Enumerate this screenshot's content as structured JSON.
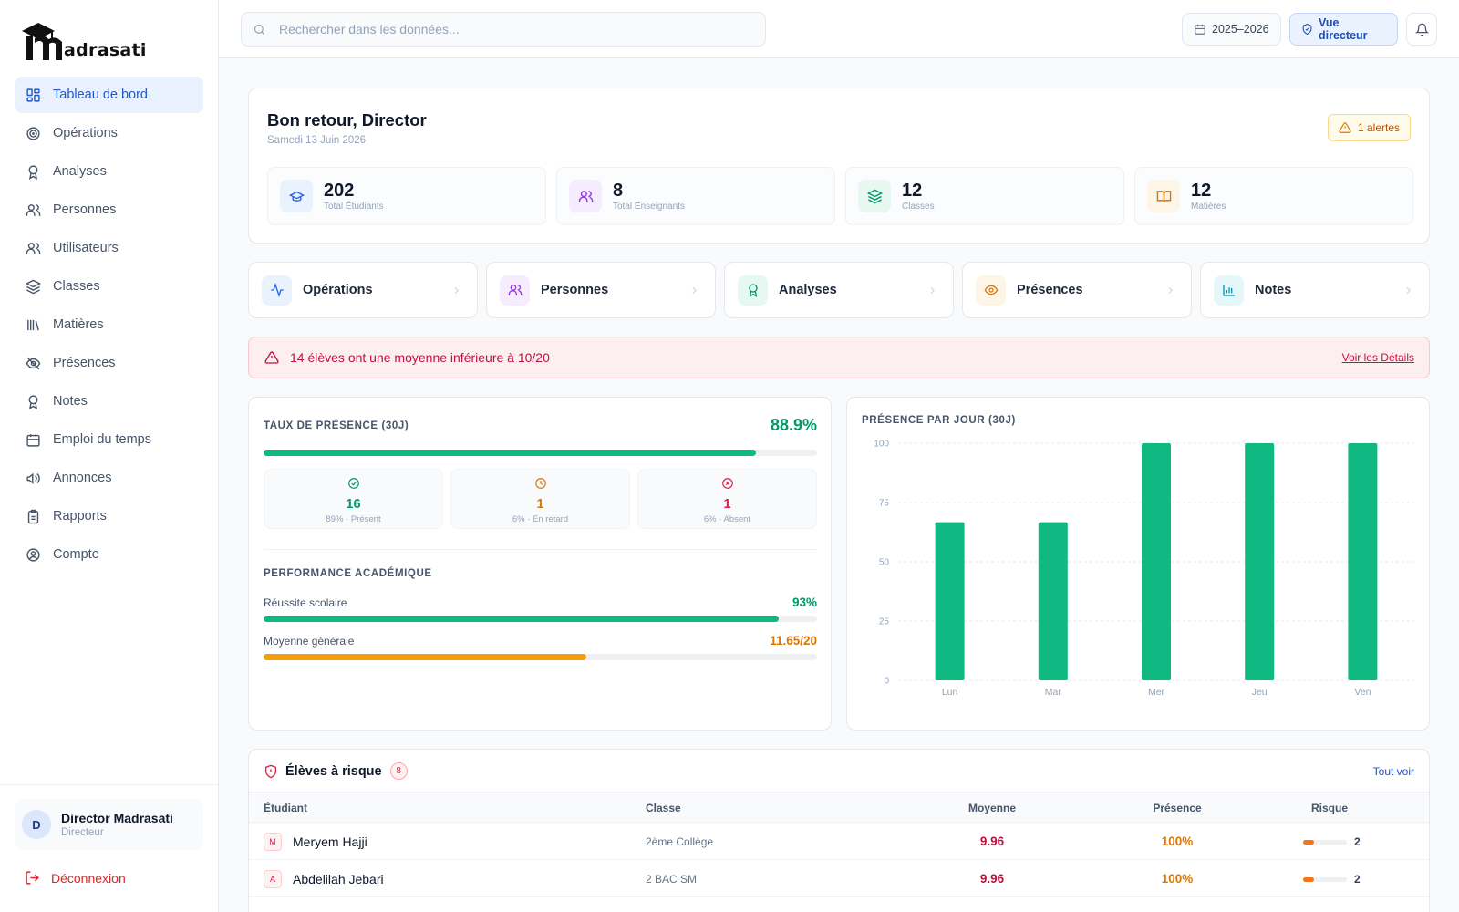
{
  "app": {
    "logo_text": "adrasati"
  },
  "sidebar": {
    "items": [
      {
        "label": "Tableau de bord",
        "icon": "dashboard-icon",
        "active": true
      },
      {
        "label": "Opérations",
        "icon": "target-icon"
      },
      {
        "label": "Analyses",
        "icon": "award-icon"
      },
      {
        "label": "Personnes",
        "icon": "users-icon"
      },
      {
        "label": "Utilisateurs",
        "icon": "users-icon"
      },
      {
        "label": "Classes",
        "icon": "layers-icon"
      },
      {
        "label": "Matières",
        "icon": "library-icon"
      },
      {
        "label": "Présences",
        "icon": "eye-off-icon"
      },
      {
        "label": "Notes",
        "icon": "award-icon"
      },
      {
        "label": "Emploi du temps",
        "icon": "calendar-icon"
      },
      {
        "label": "Annonces",
        "icon": "megaphone-icon"
      },
      {
        "label": "Rapports",
        "icon": "clipboard-icon"
      },
      {
        "label": "Compte",
        "icon": "user-circle-icon"
      }
    ],
    "user": {
      "initial": "D",
      "name": "Director Madrasati",
      "role": "Directeur"
    },
    "logout_label": "Déconnexion"
  },
  "topbar": {
    "search_placeholder": "Rechercher dans les données...",
    "year_label": "2025–2026",
    "role_label": "Vue directeur"
  },
  "welcome": {
    "title": "Bon retour, Director",
    "date": "Samedi 13 Juin 2026",
    "alert_label": "1 alertes",
    "stats": [
      {
        "value": "202",
        "label": "Total Étudiants",
        "icon": "graduation-cap-icon",
        "color": "#2563eb",
        "bg": "#eaf2fe"
      },
      {
        "value": "8",
        "label": "Total Enseignants",
        "icon": "users-icon",
        "color": "#9333ea",
        "bg": "#f5edfe"
      },
      {
        "value": "12",
        "label": "Classes",
        "icon": "layers-icon",
        "color": "#059669",
        "bg": "#e7f8f0"
      },
      {
        "value": "12",
        "label": "Matières",
        "icon": "book-open-icon",
        "color": "#d97706",
        "bg": "#fdf5e6"
      }
    ]
  },
  "quick_links": [
    {
      "label": "Opérations",
      "icon": "activity-icon",
      "color": "#2563eb",
      "bg": "#eaf2fe"
    },
    {
      "label": "Personnes",
      "icon": "users-icon",
      "color": "#9333ea",
      "bg": "#f5edfe"
    },
    {
      "label": "Analyses",
      "icon": "award-icon",
      "color": "#059669",
      "bg": "#e7f8f0"
    },
    {
      "label": "Présences",
      "icon": "eye-icon",
      "color": "#d97706",
      "bg": "#fdf5e6"
    },
    {
      "label": "Notes",
      "icon": "bar-chart-icon",
      "color": "#0891b2",
      "bg": "#e6f7fa"
    }
  ],
  "banner": {
    "text": "14 élèves ont une moyenne inférieure à 10/20",
    "link": "Voir les Détails"
  },
  "attendance": {
    "title": "TAUX DE PRÉSENCE (30J)",
    "rate": "88.9%",
    "rate_fraction": 0.889,
    "boxes": [
      {
        "value": "16",
        "label": "89% · Présent",
        "color": "#059669",
        "icon": "check-circle-icon"
      },
      {
        "value": "1",
        "label": "6% · En retard",
        "color": "#d97706",
        "icon": "clock-icon"
      },
      {
        "value": "1",
        "label": "6% · Absent",
        "color": "#e11d48",
        "icon": "x-circle-icon"
      }
    ],
    "perf_title": "PERFORMANCE ACADÉMIQUE",
    "perf": [
      {
        "label": "Réussite scolaire",
        "value": "93%",
        "fraction": 0.93,
        "color": "#10b981",
        "value_color": "#059669"
      },
      {
        "label": "Moyenne générale",
        "value": "11.65/20",
        "fraction": 0.5825,
        "color": "#f59e0b",
        "value_color": "#d97706"
      }
    ]
  },
  "chart_title": "PRÉSENCE PAR JOUR (30J)",
  "chart_data": {
    "type": "bar",
    "categories": [
      "Lun",
      "Mar",
      "Mer",
      "Jeu",
      "Ven"
    ],
    "values": [
      66.7,
      66.7,
      100,
      100,
      100
    ],
    "ylim": [
      0,
      100
    ],
    "yticks": [
      0,
      25,
      50,
      75,
      100
    ],
    "grid": true,
    "bar_color": "#10b981"
  },
  "at_risk": {
    "title": "Élèves à risque",
    "count": "8",
    "see_all": "Tout voir",
    "columns": [
      "Étudiant",
      "Classe",
      "Moyenne",
      "Présence",
      "Risque"
    ],
    "rows": [
      {
        "initial": "M",
        "name": "Meryem Hajji",
        "class": "2ème Collège",
        "average": "9.96",
        "presence": "100%",
        "risk": "2",
        "risk_fraction": 0.25
      },
      {
        "initial": "A",
        "name": "Abdelilah Jebari",
        "class": "2 BAC SM",
        "average": "9.96",
        "presence": "100%",
        "risk": "2",
        "risk_fraction": 0.25
      }
    ]
  }
}
